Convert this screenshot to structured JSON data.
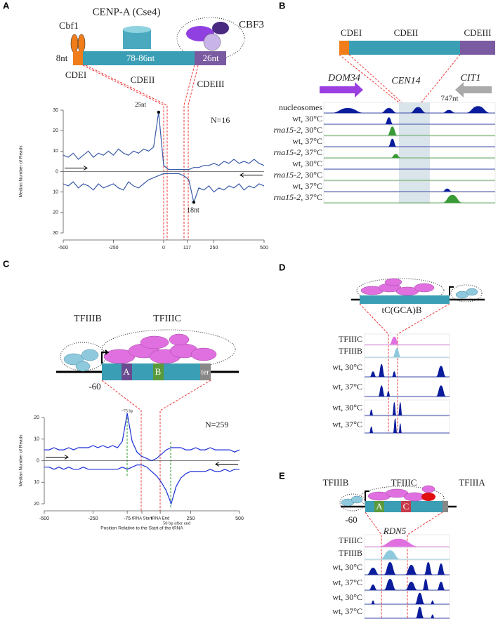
{
  "panels": {
    "a": {
      "letter": "A",
      "title": "CENP-A (Cse4)",
      "cbf1": "Cbf1",
      "cbf3": "CBF3",
      "cdei_len": "8nt",
      "cdeii_len": "78-86nt",
      "cdeiii_len": "26nt",
      "cdei": "CDEI",
      "cdeii": "CDEII",
      "cdeiii": "CDEIII"
    },
    "b": {
      "letter": "B",
      "cdei": "CDEI",
      "cdeii": "CDEII",
      "cdeiii": "CDEIII",
      "gene_left": "DOM34",
      "centromere": "CEN14",
      "gene_right": "CIT1",
      "distance": "747nt",
      "tracks": [
        {
          "text": "nucleosomes"
        },
        {
          "text": "wt, 30°C"
        },
        {
          "italic": "rna15-2",
          "text": ", 30°C"
        },
        {
          "text": "wt, 37°C"
        },
        {
          "italic": "rna15-2",
          "text": ", 37°C"
        },
        {
          "text": "wt, 30°C"
        },
        {
          "italic": "rna15-2",
          "text": ", 30°C"
        },
        {
          "text": "wt, 37°C"
        },
        {
          "italic": "rna15-2",
          "text": ", 37°C"
        }
      ]
    },
    "c": {
      "letter": "C",
      "tfiiib": "TFIIIB",
      "tfiiic": "TFIIIC",
      "offset": "-60",
      "box_a": "A",
      "box_b": "B",
      "terminator": "ter"
    },
    "d": {
      "letter": "D",
      "gene": "tC(GCA)B",
      "tracks": [
        {
          "text": "TFIIIC"
        },
        {
          "text": "TFIIIB"
        },
        {
          "text": "wt, 30°C"
        },
        {
          "text": "wt, 37°C"
        },
        {
          "text": "wt, 30°C"
        },
        {
          "text": "wt, 37°C"
        }
      ]
    },
    "e": {
      "letter": "E",
      "tfiiib": "TFIIIB",
      "tfiiic": "TFIIIC",
      "tfiiia": "TFIIIA",
      "offset": "-60",
      "box_a": "A",
      "box_c": "C",
      "gene": "RDN5",
      "tracks": [
        {
          "text": "TFIIIC"
        },
        {
          "text": "TFIIIB"
        },
        {
          "text": "wt, 30°C"
        },
        {
          "text": "wt, 37°C"
        },
        {
          "text": "wt, 30°C"
        },
        {
          "text": "wt, 37°C"
        }
      ]
    }
  },
  "chart_data": [
    {
      "type": "line",
      "ylabel": "Median Number of Reads",
      "annotations": [
        "25nt",
        "N=16",
        "18nt"
      ],
      "x": [
        -500,
        -475,
        -450,
        -425,
        -400,
        -375,
        -350,
        -325,
        -300,
        -275,
        -250,
        -225,
        -200,
        -175,
        -150,
        -125,
        -100,
        -75,
        -50,
        -25,
        0,
        25,
        50,
        75,
        100,
        125,
        150,
        175,
        200,
        225,
        250,
        275,
        300,
        325,
        350,
        375,
        400,
        425,
        450,
        475,
        500
      ],
      "series": [
        {
          "color": "#3a5ba8",
          "values": [
            8,
            7,
            9,
            6,
            8,
            10,
            7,
            9,
            8,
            10,
            8,
            11,
            9,
            8,
            10,
            9,
            11,
            10,
            12,
            29,
            3,
            1,
            1,
            1,
            1,
            1,
            2,
            2,
            3,
            3,
            4,
            3,
            5,
            4,
            6,
            4,
            5,
            4,
            6,
            4,
            3
          ]
        },
        {
          "color": "#3a5ba8",
          "values": [
            -6,
            -7,
            -5,
            -8,
            -6,
            -7,
            -9,
            -6,
            -8,
            -7,
            -6,
            -8,
            -9,
            -5,
            -7,
            -8,
            -6,
            -4,
            -3,
            -2,
            -1,
            -1,
            -1,
            -1,
            -2,
            -4,
            -15,
            -8,
            -9,
            -7,
            -10,
            -8,
            -9,
            -7,
            -8,
            -6,
            -9,
            -7,
            -8,
            -6,
            -7
          ]
        }
      ],
      "xlim": [
        -500,
        500
      ],
      "xticks": [
        -500,
        -250,
        0,
        117,
        250,
        500
      ],
      "ylim": [
        -30,
        30
      ],
      "yticks": [
        {
          "value": -30,
          "label": "30"
        },
        {
          "value": -20,
          "label": "20"
        },
        {
          "value": -10,
          "label": "10"
        },
        0,
        10,
        20,
        30
      ]
    },
    {
      "type": "line",
      "ylabel": "Median Number of Reads",
      "xlabel": "Position Relative to the Start of the tRNA",
      "annotations": [
        "~75 bp",
        "N=259",
        "50 bp after end"
      ],
      "x": [
        -500,
        -475,
        -450,
        -425,
        -400,
        -375,
        -350,
        -325,
        -300,
        -275,
        -250,
        -225,
        -200,
        -175,
        -150,
        -125,
        -100,
        -75,
        -50,
        -25,
        0,
        25,
        50,
        75,
        100,
        125,
        150,
        175,
        200,
        225,
        250,
        275,
        300,
        325,
        350,
        375,
        400,
        425,
        450,
        475,
        500
      ],
      "series": [
        {
          "color": "#1c2fd6",
          "values": [
            5,
            5,
            6,
            5,
            5,
            6,
            5,
            6,
            6,
            6,
            7,
            6,
            7,
            6,
            7,
            6,
            9,
            22,
            9,
            4,
            2,
            1,
            0,
            1,
            3,
            5,
            6,
            6,
            6,
            5,
            5,
            6,
            5,
            5,
            6,
            5,
            5,
            5,
            5,
            4,
            5
          ]
        },
        {
          "color": "#1c2fd6",
          "values": [
            -3,
            -3,
            -4,
            -3,
            -4,
            -3,
            -4,
            -4,
            -3,
            -4,
            -4,
            -4,
            -4,
            -4,
            -4,
            -4,
            -3,
            -4,
            -3,
            -2,
            -2,
            -3,
            -5,
            -7,
            -10,
            -14,
            -20,
            -12,
            -8,
            -6,
            -5,
            -5,
            -5,
            -5,
            -4,
            -5,
            -5,
            -4,
            -5,
            -4,
            -4
          ]
        }
      ],
      "xlim": [
        -500,
        500
      ],
      "xticks": [
        -500,
        -250,
        -75,
        {
          "value": 0,
          "label": "tRNA Start"
        },
        {
          "value": 94,
          "label": "tRNA End"
        },
        250,
        500
      ],
      "ylim": [
        -20,
        20
      ],
      "yticks": [
        {
          "value": -20,
          "label": "20"
        },
        {
          "value": -10,
          "label": "10"
        },
        0,
        10,
        20
      ]
    }
  ]
}
